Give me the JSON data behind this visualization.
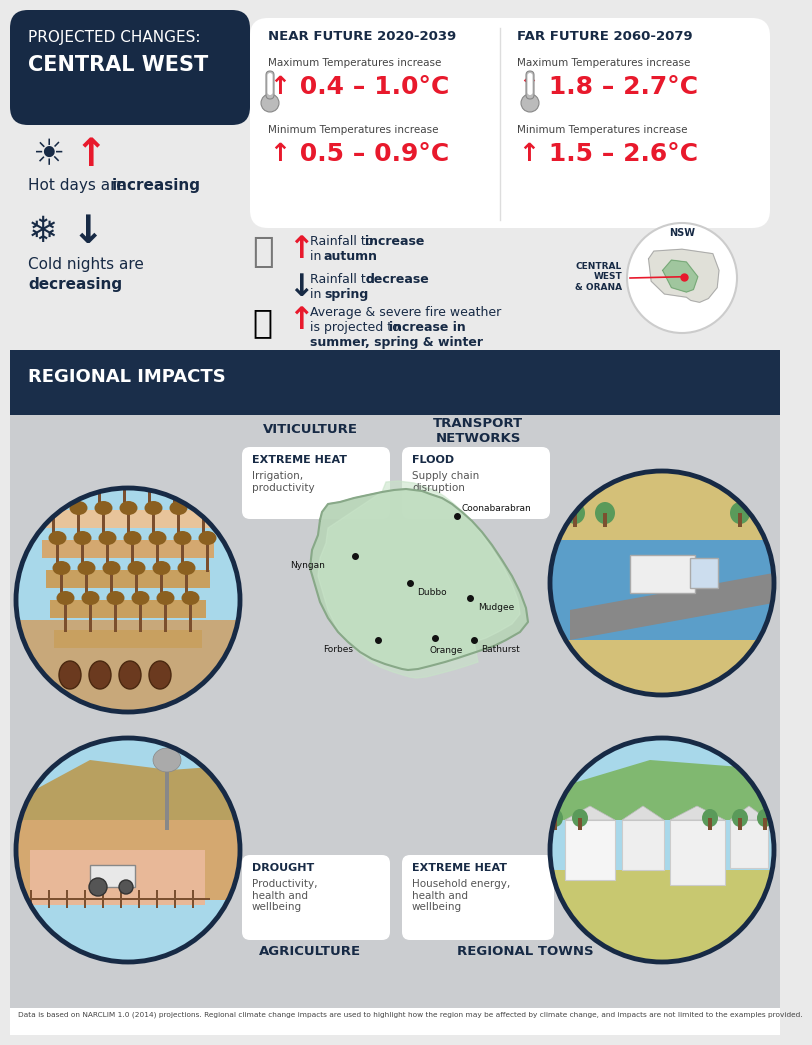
{
  "title_line1": "PROJECTED CHANGES:",
  "title_line2": "CENTRAL WEST",
  "title_bg": "#172A45",
  "bg_color": "#EAEAEA",
  "near_future_title": "NEAR FUTURE 2020-2039",
  "far_future_title": "FAR FUTURE 2060-2079",
  "near_max_label": "Maximum Temperatures increase",
  "near_max_val": "↑ 0.4 – 1.0°C",
  "near_min_label": "Minimum Temperatures increase",
  "near_min_val": "↑ 0.5 – 0.9°C",
  "far_max_label": "Maximum Temperatures increase",
  "far_max_val": "↑ 1.8 – 2.7°C",
  "far_min_label": "Minimum Temperatures increase",
  "far_min_val": "↑ 1.5 – 2.6°C",
  "red": "#E8192C",
  "dark_navy": "#172A45",
  "section_bg": "#1A2E4A",
  "footer": "Data is based on NARCLIM 1.0 (2014) projections. Regional climate change impacts are used to highlight how the region may be affected by climate change, and impacts are not limited to the examples provided.",
  "viticulture": "VITICULTURE",
  "transport": "TRANSPORT\nNETWORKS",
  "agriculture": "AGRICULTURE",
  "regional_towns": "REGIONAL TOWNS",
  "extreme_heat1": "EXTREME HEAT",
  "irrigation": "Irrigation,\nproductivity",
  "flood": "FLOOD",
  "supply_chain": "Supply chain\ndisruption",
  "drought": "DROUGHT",
  "productivity": "Productivity,\nhealth and\nwellbeing",
  "extreme_heat2": "EXTREME HEAT",
  "household": "Household energy,\nhealth and\nwellbeing",
  "regional_impacts_title": "REGIONAL IMPACTS"
}
